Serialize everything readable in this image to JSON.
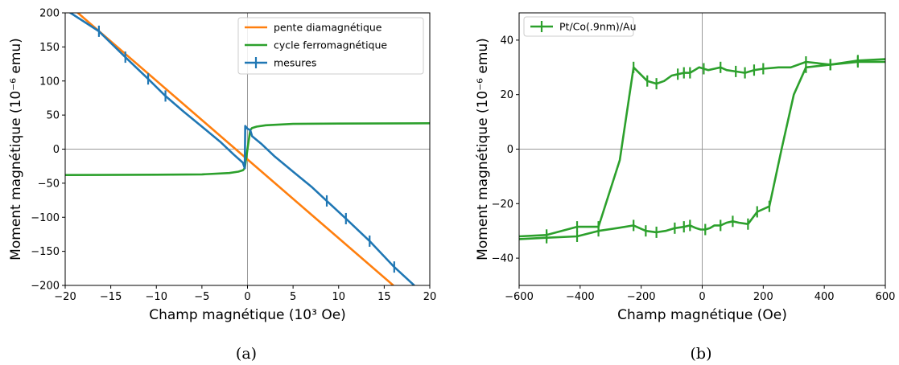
{
  "chart_data": [
    {
      "type": "line",
      "panel_label": "(a)",
      "xlabel": "Champ magnétique (10³ Oe)",
      "ylabel": "Moment magnétique (10⁻⁶ emu)",
      "xlim": [
        -20,
        20
      ],
      "ylim": [
        -200,
        200
      ],
      "xticks": [
        -20,
        -15,
        -10,
        -5,
        0,
        5,
        10,
        15,
        20
      ],
      "yticks": [
        -200,
        -150,
        -100,
        -50,
        0,
        50,
        100,
        150,
        200
      ],
      "xtick_labels": [
        "−20",
        "−15",
        "−10",
        "−5",
        "0",
        "5",
        "10",
        "15",
        "20"
      ],
      "ytick_labels": [
        "−200",
        "−150",
        "−100",
        "−50",
        "0",
        "50",
        "100",
        "150",
        "200"
      ],
      "grid": false,
      "zero_lines": true,
      "legend_position": "top-right",
      "series": [
        {
          "name": "pente diamagnétique",
          "color": "#ff7f0e",
          "x": [
            -20,
            16
          ],
          "y": [
            216,
            -200
          ]
        },
        {
          "name": "cycle ferromagnétique",
          "color": "#2ca02c",
          "x": [
            -20,
            -10,
            -5,
            -2,
            -1,
            -0.5,
            -0.3,
            0.3,
            0.5,
            1,
            2,
            5,
            10,
            20
          ],
          "y": [
            -38,
            -37.5,
            -37,
            -35,
            -33,
            -31,
            -28,
            28,
            31,
            33,
            35,
            37,
            37.5,
            38
          ]
        },
        {
          "name": "mesures",
          "color": "#1f77b4",
          "error_bars": true,
          "x": [
            -20,
            -16.3,
            -13.4,
            -10.9,
            -9.0,
            -7.0,
            -5.0,
            -3.0,
            -1.5,
            -0.5,
            -0.3,
            -0.25,
            0.0,
            0.3,
            0.5,
            1.5,
            3.0,
            5.0,
            7.0,
            8.7,
            10.8,
            13.4,
            16.1,
            18.3
          ],
          "y": [
            205,
            173,
            135,
            103,
            78,
            55,
            33,
            11,
            -8,
            -20,
            -28,
            34,
            30,
            28,
            19,
            8,
            -11,
            -33,
            -55,
            -76,
            -102,
            -135,
            -173,
            -200
          ],
          "error_bar_x": [
            -16.3,
            -13.4,
            -10.9,
            -9.0,
            8.7,
            10.8,
            13.4,
            16.1
          ]
        }
      ]
    },
    {
      "type": "line",
      "panel_label": "(b)",
      "xlabel": "Champ magnétique (Oe)",
      "ylabel": "Moment magnétique (10⁻⁶ emu)",
      "xlim": [
        -600,
        600
      ],
      "ylim": [
        -50,
        50
      ],
      "xticks": [
        -600,
        -400,
        -200,
        0,
        200,
        400,
        600
      ],
      "yticks": [
        -40,
        -20,
        0,
        20,
        40
      ],
      "xtick_labels": [
        "−600",
        "−400",
        "−200",
        "0",
        "200",
        "400",
        "600"
      ],
      "ytick_labels": [
        "−40",
        "−20",
        "0",
        "20",
        "40"
      ],
      "grid": false,
      "zero_lines": true,
      "legend_position": "top-left",
      "series": [
        {
          "name": "Pt/Co(.9nm)/Au",
          "color": "#2ca02c",
          "error_bars": true,
          "branches": [
            {
              "x": [
                -600,
                -510,
                -410,
                -340,
                -280,
                -225,
                -185,
                -150,
                -120,
                -90,
                -60,
                -40,
                -20,
                -5,
                10,
                25,
                40,
                60,
                80,
                100,
                120,
                150,
                180,
                220,
                260,
                300,
                340,
                420,
                510,
                600
              ],
              "y": [
                -33,
                -32.5,
                -32,
                -30,
                -29,
                -28,
                -30,
                -30.5,
                -30,
                -29,
                -28.5,
                -28,
                -29,
                -29.5,
                -29.5,
                -29,
                -28,
                -28,
                -27,
                -26.5,
                -27,
                -27.5,
                -23,
                -21,
                0,
                20,
                30,
                31,
                32,
                32
              ]
            },
            {
              "x": [
                600,
                510,
                420,
                340,
                290,
                250,
                200,
                170,
                140,
                110,
                80,
                60,
                40,
                20,
                5,
                -10,
                -25,
                -40,
                -60,
                -80,
                -100,
                -125,
                -150,
                -180,
                -225,
                -270,
                -340,
                -410,
                -510,
                -600
              ],
              "y": [
                33,
                32.5,
                31,
                32,
                30,
                30,
                29.5,
                29,
                28,
                28.5,
                29,
                30,
                29.5,
                29,
                29.5,
                30,
                29,
                28,
                28,
                27.5,
                27,
                25,
                24,
                25,
                30,
                -4,
                -28.5,
                -28.5,
                -31.5,
                -32
              ]
            }
          ],
          "error_bar_x": [
            -510,
            -410,
            -340,
            -225,
            -185,
            -150,
            -90,
            -60,
            -40,
            10,
            60,
            100,
            150,
            180,
            220,
            340,
            420,
            510
          ]
        }
      ]
    }
  ]
}
